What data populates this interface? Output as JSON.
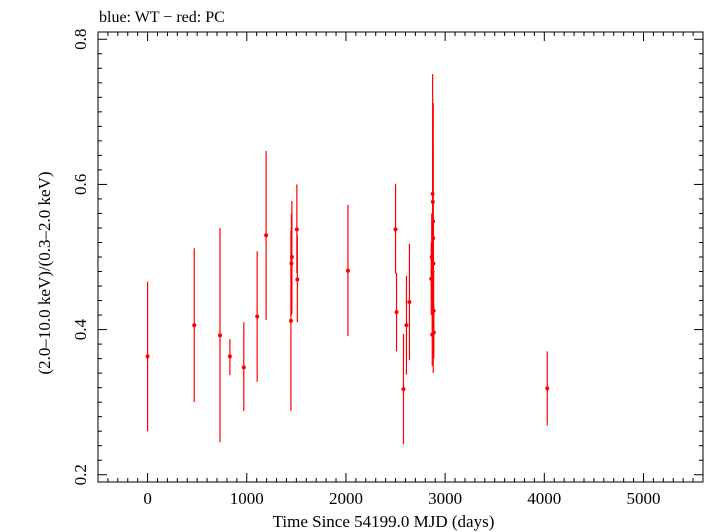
{
  "chart_data": {
    "type": "scatter",
    "title": "blue: WT − red: PC",
    "xlabel": "Time Since 54199.0 MJD (days)",
    "ylabel": "(2.0–10.0 keV)/(0.3–2.0 keV)",
    "xlim": [
      -500,
      5600
    ],
    "ylim": [
      0.19,
      0.81
    ],
    "x_ticks": [
      0,
      1000,
      2000,
      3000,
      4000,
      5000
    ],
    "x_tick_labels": [
      "0",
      "1000",
      "2000",
      "3000",
      "4000",
      "5000"
    ],
    "y_ticks": [
      0.2,
      0.4,
      0.6,
      0.8
    ],
    "y_tick_labels": [
      "0.2",
      "0.4",
      "0.6",
      "0.8"
    ],
    "grid": false,
    "colors": {
      "PC": "#ff0000",
      "WT": "#0000ff",
      "axes": "#000000"
    },
    "series": [
      {
        "name": "PC",
        "points": [
          {
            "x": 0,
            "y": 0.363,
            "ylo": 0.26,
            "yhi": 0.466
          },
          {
            "x": 470,
            "y": 0.406,
            "ylo": 0.3,
            "yhi": 0.512
          },
          {
            "x": 730,
            "y": 0.392,
            "ylo": 0.245,
            "yhi": 0.54
          },
          {
            "x": 830,
            "y": 0.363,
            "ylo": 0.337,
            "yhi": 0.387
          },
          {
            "x": 970,
            "y": 0.348,
            "ylo": 0.288,
            "yhi": 0.41
          },
          {
            "x": 1105,
            "y": 0.418,
            "ylo": 0.328,
            "yhi": 0.508
          },
          {
            "x": 1195,
            "y": 0.53,
            "ylo": 0.413,
            "yhi": 0.646
          },
          {
            "x": 1445,
            "y": 0.412,
            "ylo": 0.288,
            "yhi": 0.536
          },
          {
            "x": 1450,
            "y": 0.491,
            "ylo": 0.42,
            "yhi": 0.56
          },
          {
            "x": 1455,
            "y": 0.5,
            "ylo": 0.422,
            "yhi": 0.577
          },
          {
            "x": 1505,
            "y": 0.538,
            "ylo": 0.478,
            "yhi": 0.6
          },
          {
            "x": 1510,
            "y": 0.469,
            "ylo": 0.41,
            "yhi": 0.53
          },
          {
            "x": 2020,
            "y": 0.481,
            "ylo": 0.391,
            "yhi": 0.572
          },
          {
            "x": 2500,
            "y": 0.538,
            "ylo": 0.477,
            "yhi": 0.601
          },
          {
            "x": 2510,
            "y": 0.424,
            "ylo": 0.37,
            "yhi": 0.478
          },
          {
            "x": 2580,
            "y": 0.318,
            "ylo": 0.242,
            "yhi": 0.394
          },
          {
            "x": 2610,
            "y": 0.406,
            "ylo": 0.338,
            "yhi": 0.474
          },
          {
            "x": 2640,
            "y": 0.438,
            "ylo": 0.358,
            "yhi": 0.518
          },
          {
            "x": 2860,
            "y": 0.47,
            "ylo": 0.42,
            "yhi": 0.52
          },
          {
            "x": 2865,
            "y": 0.5,
            "ylo": 0.44,
            "yhi": 0.56
          },
          {
            "x": 2870,
            "y": 0.393,
            "ylo": 0.35,
            "yhi": 0.436
          },
          {
            "x": 2872,
            "y": 0.48,
            "ylo": 0.4,
            "yhi": 0.56
          },
          {
            "x": 2874,
            "y": 0.587,
            "ylo": 0.42,
            "yhi": 0.752
          },
          {
            "x": 2876,
            "y": 0.576,
            "ylo": 0.47,
            "yhi": 0.68
          },
          {
            "x": 2878,
            "y": 0.549,
            "ylo": 0.45,
            "yhi": 0.65
          },
          {
            "x": 2880,
            "y": 0.526,
            "ylo": 0.34,
            "yhi": 0.712
          },
          {
            "x": 2882,
            "y": 0.491,
            "ylo": 0.43,
            "yhi": 0.55
          },
          {
            "x": 2884,
            "y": 0.426,
            "ylo": 0.37,
            "yhi": 0.48
          },
          {
            "x": 2886,
            "y": 0.396,
            "ylo": 0.36,
            "yhi": 0.432
          },
          {
            "x": 4030,
            "y": 0.319,
            "ylo": 0.268,
            "yhi": 0.37
          }
        ]
      }
    ]
  }
}
